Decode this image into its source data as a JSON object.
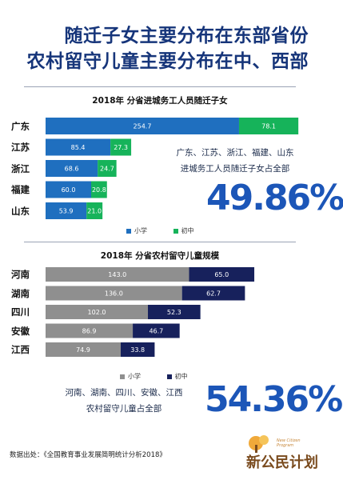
{
  "headline": {
    "line1": "随迁子女主要分布在东部省份",
    "line2": "农村留守儿童主要分布在中、西部"
  },
  "chart_data": [
    {
      "type": "bar",
      "orientation": "horizontal",
      "stacked": true,
      "title": "2018年  分省进城务工人员随迁子女",
      "categories": [
        "广东",
        "江苏",
        "浙江",
        "福建",
        "山东"
      ],
      "series": [
        {
          "name": "小学",
          "color": "#1f6fbf",
          "values": [
            254.7,
            85.4,
            68.6,
            60.0,
            53.9
          ]
        },
        {
          "name": "初中",
          "color": "#16b35a",
          "values": [
            78.1,
            27.3,
            24.7,
            20.8,
            21.0
          ]
        }
      ],
      "legend_position": "bottom",
      "note": [
        "广东、江苏、浙江、福建、山东",
        "进城务工人员随迁子女占全部"
      ],
      "highlight": "49.86%"
    },
    {
      "type": "bar",
      "orientation": "horizontal",
      "stacked": true,
      "title": "2018年  分省农村留守儿童规模",
      "categories": [
        "河南",
        "湖南",
        "四川",
        "安徽",
        "江西"
      ],
      "series": [
        {
          "name": "小学",
          "color": "#8f8f8f",
          "values": [
            143.0,
            136.0,
            102.0,
            86.9,
            74.9
          ]
        },
        {
          "name": "初中",
          "color": "#17215c",
          "values": [
            65.0,
            62.7,
            52.3,
            46.7,
            33.8
          ]
        }
      ],
      "legend_position": "bottom",
      "note": [
        "河南、湖南、四川、安徽、江西",
        "农村留守儿童占全部"
      ],
      "highlight": "54.36%"
    }
  ],
  "source": "数据出处：《全国教育事业发展简明统计分析2018》",
  "logo": {
    "text": "新公民计划",
    "english": [
      "New Citizen",
      "Program"
    ]
  }
}
